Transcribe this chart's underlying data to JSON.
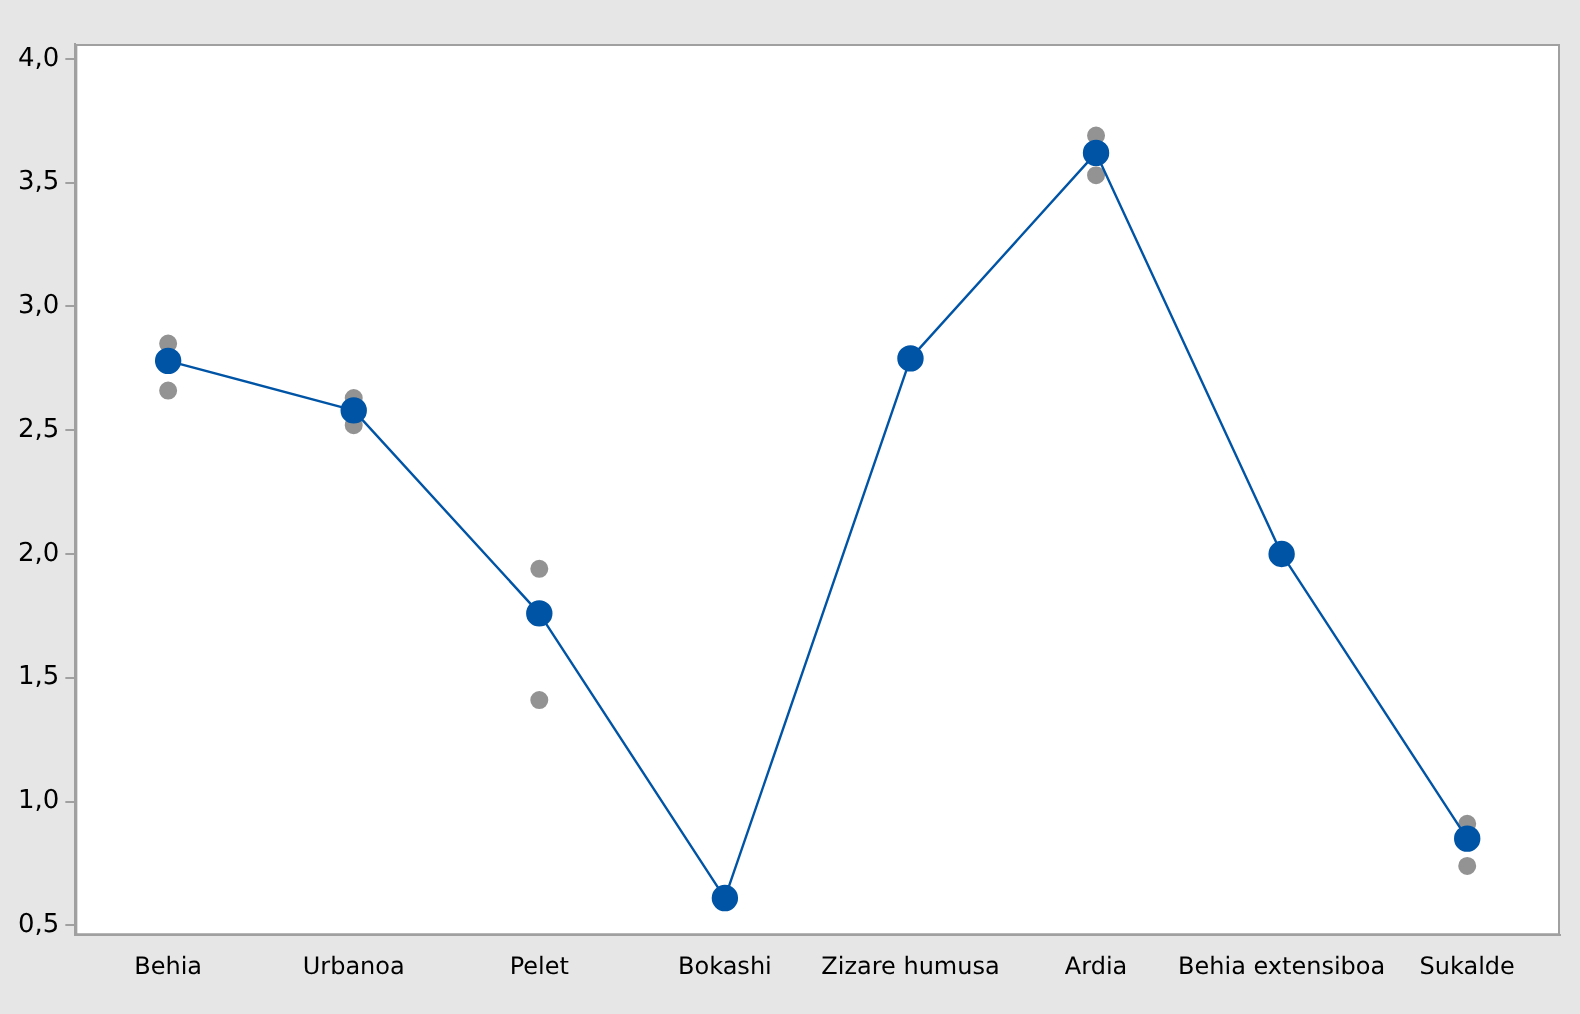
{
  "chart_data": {
    "type": "line",
    "categories": [
      "Behia",
      "Urbanoa",
      "Pelet",
      "Bokashi",
      "Zizare humusa",
      "Ardia",
      "Behia extensiboa",
      "Sukalde"
    ],
    "series": [
      {
        "type": "scatter",
        "color": "#939393",
        "x": [
          "Behia",
          "Behia",
          "Urbanoa",
          "Urbanoa",
          "Pelet",
          "Pelet",
          "Ardia",
          "Ardia",
          "Sukalde",
          "Sukalde"
        ],
        "values": [
          2.85,
          2.66,
          2.63,
          2.52,
          1.94,
          1.41,
          3.69,
          3.53,
          0.91,
          0.74
        ]
      },
      {
        "color": "#0054a6",
        "values": [
          2.78,
          2.58,
          1.76,
          0.61,
          2.79,
          3.62,
          2.0,
          0.85
        ]
      }
    ],
    "ylim": [
      0.46,
      4.06
    ],
    "yticks": [
      {
        "value": 0.5,
        "label": "0,5"
      },
      {
        "value": 1,
        "label": "1,0"
      },
      {
        "value": 1.5,
        "label": "1,5"
      },
      {
        "value": 2,
        "label": "2,0"
      },
      {
        "value": 2.5,
        "label": "2,5"
      },
      {
        "value": 3,
        "label": "3,0"
      },
      {
        "value": 3.5,
        "label": "3,5"
      },
      {
        "value": 4,
        "label": "4,0"
      }
    ],
    "grid": false,
    "legend": false,
    "marker": "circle",
    "line_style": "solid"
  }
}
